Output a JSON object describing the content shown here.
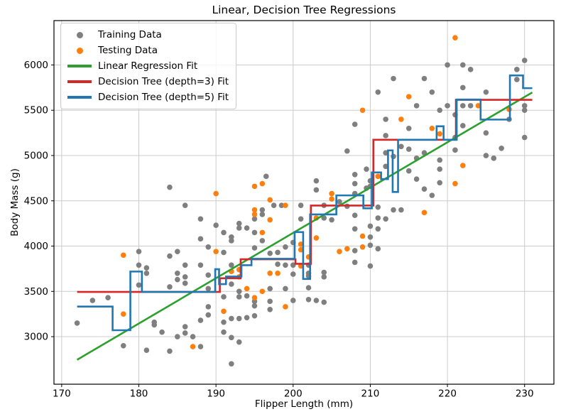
{
  "figure": {
    "title": "Linear, Decision Tree Regressions",
    "xlabel": "Flipper Length (mm)",
    "ylabel": "Body Mass (g)"
  },
  "chart_data": {
    "type": "scatter",
    "title": "Linear, Decision Tree Regressions",
    "xlabel": "Flipper Length (mm)",
    "ylabel": "Body Mass (g)",
    "xlim": [
      169,
      233.8
    ],
    "ylim": [
      2475,
      6490
    ],
    "xticks": [
      170,
      180,
      190,
      200,
      210,
      220,
      230
    ],
    "yticks": [
      3000,
      3500,
      4000,
      4500,
      5000,
      5500,
      6000
    ],
    "grid": true,
    "legend_position": "upper left",
    "colors": {
      "training": "#7f7f7f",
      "testing": "#ff7f0e",
      "linear_fit": "#2ca02c",
      "tree_depth3_fit": "#d62728",
      "tree_depth5_fit": "#1f77b4",
      "grid": "#cccccc",
      "spine": "#000000"
    },
    "series": [
      {
        "name": "Training Data",
        "kind": "scatter",
        "color": "#7f7f7f",
        "marker_radius": 3.8,
        "points": [
          [
            172,
            3150
          ],
          [
            174,
            3400
          ],
          [
            176,
            3430
          ],
          [
            178,
            2900
          ],
          [
            180,
            3940
          ],
          [
            180,
            3790
          ],
          [
            180,
            3570
          ],
          [
            181,
            3760
          ],
          [
            181,
            3700
          ],
          [
            181,
            2850
          ],
          [
            182,
            3160
          ],
          [
            182,
            3130
          ],
          [
            183,
            3050
          ],
          [
            184,
            4650
          ],
          [
            184,
            3890
          ],
          [
            184,
            3550
          ],
          [
            184,
            2840
          ],
          [
            185,
            3940
          ],
          [
            185,
            3700
          ],
          [
            185,
            3630
          ],
          [
            185,
            3000
          ],
          [
            186,
            4450
          ],
          [
            186,
            3790
          ],
          [
            186,
            3660
          ],
          [
            186,
            3590
          ],
          [
            186,
            3110
          ],
          [
            186,
            3040
          ],
          [
            187,
            3000
          ],
          [
            188,
            4300
          ],
          [
            188,
            4080
          ],
          [
            188,
            3790
          ],
          [
            188,
            3180
          ],
          [
            188,
            2890
          ],
          [
            189,
            3990
          ],
          [
            189,
            3680
          ],
          [
            189,
            3530
          ],
          [
            189,
            3330
          ],
          [
            189,
            3240
          ],
          [
            190,
            4230
          ],
          [
            191,
            4150
          ],
          [
            191,
            3930
          ],
          [
            191,
            3440
          ],
          [
            191,
            3160
          ],
          [
            191,
            3050
          ],
          [
            192,
            4100
          ],
          [
            192,
            4060
          ],
          [
            192,
            3790
          ],
          [
            192,
            3580
          ],
          [
            192,
            3200
          ],
          [
            192,
            2990
          ],
          [
            192,
            2700
          ],
          [
            193,
            4250
          ],
          [
            193,
            4200
          ],
          [
            193,
            3500
          ],
          [
            193,
            3440
          ],
          [
            193,
            3200
          ],
          [
            193,
            2940
          ],
          [
            194,
            4200
          ],
          [
            194,
            3450
          ],
          [
            194,
            3210
          ],
          [
            195,
            4300
          ],
          [
            195,
            4150
          ],
          [
            195,
            3980
          ],
          [
            195,
            3390
          ],
          [
            195,
            3340
          ],
          [
            195,
            3230
          ],
          [
            196,
            4400
          ],
          [
            196,
            4350
          ],
          [
            196,
            4060
          ],
          [
            196.5,
            4770
          ],
          [
            197,
            3920
          ],
          [
            197,
            3530
          ],
          [
            197,
            3390
          ],
          [
            197,
            3300
          ],
          [
            197.5,
            4450
          ],
          [
            198.5,
            4450
          ],
          [
            198,
            3930
          ],
          [
            198,
            3800
          ],
          [
            199,
            3990
          ],
          [
            199,
            3790
          ],
          [
            199,
            3530
          ],
          [
            200,
            4040
          ],
          [
            200,
            3790
          ],
          [
            200,
            3690
          ],
          [
            200,
            3400
          ],
          [
            201,
            4450
          ],
          [
            201,
            4300
          ],
          [
            202,
            3790
          ],
          [
            202,
            3700
          ],
          [
            202,
            3670
          ],
          [
            202,
            3540
          ],
          [
            202,
            3410
          ],
          [
            203,
            4720
          ],
          [
            203,
            4620
          ],
          [
            203,
            3400
          ],
          [
            204,
            4450
          ],
          [
            204,
            4310
          ],
          [
            204,
            3710
          ],
          [
            204,
            3660
          ],
          [
            204,
            3380
          ],
          [
            205,
            4290
          ],
          [
            206,
            4490
          ],
          [
            207,
            5050
          ],
          [
            207,
            4440
          ],
          [
            208,
            5345
          ],
          [
            208,
            4790
          ],
          [
            208,
            4690
          ],
          [
            208,
            4580
          ],
          [
            208,
            4340
          ],
          [
            208,
            4190
          ],
          [
            208,
            3950
          ],
          [
            208,
            3820
          ],
          [
            209.5,
            4850
          ],
          [
            210,
            4720
          ],
          [
            209.5,
            4640
          ],
          [
            210,
            4660
          ],
          [
            210,
            4220
          ],
          [
            210,
            4100
          ],
          [
            210,
            4010
          ],
          [
            210,
            3780
          ],
          [
            211,
            5700
          ],
          [
            211,
            4430
          ],
          [
            211,
            4310
          ],
          [
            211,
            4190
          ],
          [
            211,
            3970
          ],
          [
            212,
            5400
          ],
          [
            212,
            5220
          ],
          [
            212,
            5030
          ],
          [
            212,
            4880
          ],
          [
            212,
            4300
          ],
          [
            213,
            5850
          ],
          [
            213,
            4990
          ],
          [
            213,
            4400
          ],
          [
            214,
            5100
          ],
          [
            214,
            4400
          ],
          [
            215,
            5300
          ],
          [
            215,
            5070
          ],
          [
            215,
            4830
          ],
          [
            216,
            5550
          ],
          [
            216,
            4970
          ],
          [
            216,
            4740
          ],
          [
            217,
            5850
          ],
          [
            217,
            5030
          ],
          [
            217,
            4630
          ],
          [
            218,
            5700
          ],
          [
            218,
            4560
          ],
          [
            219,
            5500
          ],
          [
            219,
            4950
          ],
          [
            219,
            4850
          ],
          [
            219,
            4700
          ],
          [
            220,
            6000
          ],
          [
            220,
            5550
          ],
          [
            221,
            5450
          ],
          [
            221,
            5200
          ],
          [
            221,
            5060
          ],
          [
            222,
            6000
          ],
          [
            222,
            5750
          ],
          [
            222,
            5550
          ],
          [
            222,
            5330
          ],
          [
            223,
            5950
          ],
          [
            223,
            5550
          ],
          [
            225,
            5700
          ],
          [
            225,
            5250
          ],
          [
            225,
            5000
          ],
          [
            226,
            4970
          ],
          [
            227,
            5080
          ],
          [
            228,
            5400
          ],
          [
            229,
            5950
          ],
          [
            229,
            5840
          ],
          [
            230,
            6050
          ],
          [
            230,
            5550
          ],
          [
            230,
            5500
          ],
          [
            230,
            5200
          ]
        ]
      },
      {
        "name": "Testing Data",
        "kind": "scatter",
        "color": "#ff7f0e",
        "marker_radius": 3.8,
        "points": [
          [
            178,
            3900
          ],
          [
            178,
            3250
          ],
          [
            187,
            2890
          ],
          [
            190,
            3940
          ],
          [
            190,
            4580
          ],
          [
            191,
            3280
          ],
          [
            192,
            3720
          ],
          [
            193,
            3740
          ],
          [
            193,
            3660
          ],
          [
            194,
            3530
          ],
          [
            195,
            4400
          ],
          [
            195,
            4350
          ],
          [
            195,
            4660
          ],
          [
            195,
            3430
          ],
          [
            196,
            4690
          ],
          [
            196,
            4150
          ],
          [
            196,
            3500
          ],
          [
            197,
            4510
          ],
          [
            197,
            4290
          ],
          [
            197,
            3700
          ],
          [
            198,
            3700
          ],
          [
            199,
            4450
          ],
          [
            199,
            3330
          ],
          [
            201,
            4020
          ],
          [
            201,
            3960
          ],
          [
            201,
            3780
          ],
          [
            202,
            3880
          ],
          [
            203,
            4310
          ],
          [
            203,
            4090
          ],
          [
            205,
            4520
          ],
          [
            205,
            4580
          ],
          [
            206,
            3940
          ],
          [
            207,
            3970
          ],
          [
            209,
            5500
          ],
          [
            209,
            4110
          ],
          [
            209,
            3990
          ],
          [
            211,
            4770
          ],
          [
            214,
            5400
          ],
          [
            215,
            5650
          ],
          [
            217,
            4370
          ],
          [
            218,
            5300
          ],
          [
            219,
            5240
          ],
          [
            221,
            6300
          ],
          [
            221,
            4690
          ],
          [
            222,
            4890
          ],
          [
            224,
            5550
          ],
          [
            228,
            5510
          ]
        ]
      },
      {
        "name": "Linear Regression Fit",
        "kind": "line",
        "color": "#2ca02c",
        "width": 2.6,
        "points": [
          [
            172,
            2745
          ],
          [
            231,
            5697
          ]
        ]
      },
      {
        "name": "Decision Tree (depth=3) Fit",
        "kind": "step",
        "color": "#d62728",
        "width": 2.6,
        "steps": [
          [
            172,
            190.5,
            3494
          ],
          [
            190.5,
            193.2,
            3645
          ],
          [
            193.2,
            200.3,
            3855
          ],
          [
            200.3,
            202.3,
            3805
          ],
          [
            202.3,
            210.4,
            4448
          ],
          [
            210.4,
            221.1,
            5174
          ],
          [
            221.1,
            231,
            5615
          ]
        ]
      },
      {
        "name": "Decision Tree (depth=5) Fit",
        "kind": "step",
        "color": "#1f77b4",
        "width": 2.6,
        "steps": [
          [
            172,
            176.6,
            3332
          ],
          [
            176.6,
            178.9,
            3071
          ],
          [
            178.9,
            180.4,
            3719
          ],
          [
            180.4,
            189.9,
            3494
          ],
          [
            189.9,
            190.4,
            3745
          ],
          [
            190.4,
            191.3,
            3580
          ],
          [
            191.3,
            193.3,
            3664
          ],
          [
            193.3,
            194.6,
            3789
          ],
          [
            194.6,
            200.2,
            3860
          ],
          [
            200.2,
            201.3,
            4155
          ],
          [
            201.3,
            202.2,
            3637
          ],
          [
            202.2,
            205.6,
            4350
          ],
          [
            205.6,
            209.1,
            4560
          ],
          [
            209.1,
            210.2,
            4417
          ],
          [
            210.2,
            211.4,
            4813
          ],
          [
            211.4,
            212.3,
            4740
          ],
          [
            212.3,
            212.9,
            5057
          ],
          [
            212.9,
            213.6,
            4598
          ],
          [
            213.6,
            218.6,
            5174
          ],
          [
            218.6,
            219.5,
            5323
          ],
          [
            219.5,
            221.2,
            5174
          ],
          [
            221.2,
            224.3,
            5618
          ],
          [
            224.3,
            228.1,
            5397
          ],
          [
            228.1,
            229.8,
            5885
          ],
          [
            229.8,
            231,
            5744
          ]
        ]
      }
    ]
  }
}
